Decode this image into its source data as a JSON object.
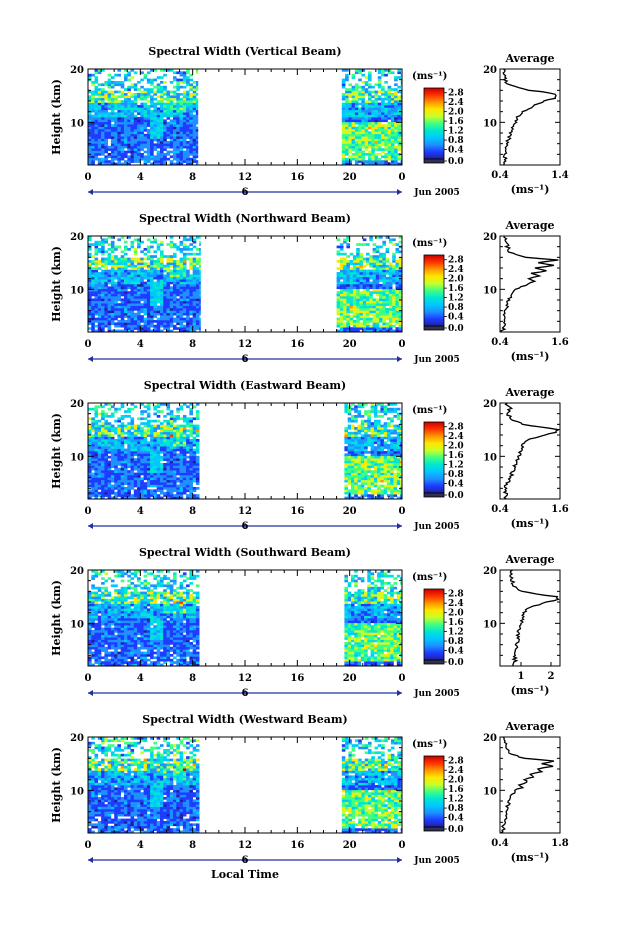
{
  "figure": {
    "month_label": "Jun 2005",
    "x_axis_title": "Local Time",
    "y_axis_title": "Height (km)",
    "colorbar_unit": "(ms⁻¹)",
    "colorbar_ticks": [
      "2.8",
      "2.4",
      "2.0",
      "1.6",
      "1.2",
      "0.8",
      "0.4",
      "0.0"
    ],
    "day_marker_label": "6",
    "avg_title": "Average",
    "avg_xlabel": "(ms⁻¹)",
    "colors": {
      "colorbar_gradient": [
        "#2020a0",
        "#1e3cff",
        "#1e90ff",
        "#00c8ff",
        "#00e6d2",
        "#40ff80",
        "#c8ff28",
        "#ffe600",
        "#ff9600",
        "#ff3200",
        "#c80000"
      ],
      "colorbar_bottom_band": "#303050",
      "day_marker": "#2030a0"
    }
  },
  "chart_data": [
    {
      "type": "heatmap",
      "title": "Spectral Width (Vertical Beam)",
      "xlabel": "Local Time",
      "ylabel": "Height (km)",
      "x_ticks": [
        "0",
        "4",
        "8",
        "12",
        "16",
        "20",
        "0"
      ],
      "y_ticks": [
        "20",
        "10"
      ],
      "xlim": [
        0,
        24
      ],
      "ylim": [
        2,
        20
      ],
      "data_coverage_hours": [
        [
          0,
          8.4
        ],
        [
          19.4,
          24
        ]
      ],
      "colorbar": {
        "label": "(ms⁻¹)",
        "range": [
          0.0,
          3.0
        ]
      },
      "average_profile": {
        "title": "Average",
        "xlabel": "(ms⁻¹)",
        "x_ticks": [
          "0.4",
          "1.4"
        ],
        "xlim": [
          0.4,
          1.4
        ],
        "y_ticks": [
          "20",
          "10"
        ],
        "ylim": [
          2,
          20
        ],
        "height_km": [
          2,
          3,
          4,
          5,
          6,
          7,
          8,
          9,
          10,
          11,
          12,
          13,
          13.5,
          14,
          14.5,
          15,
          15.5,
          16,
          17,
          18,
          19,
          20
        ],
        "width": [
          0.46,
          0.5,
          0.47,
          0.52,
          0.5,
          0.55,
          0.58,
          0.6,
          0.66,
          0.7,
          0.78,
          0.95,
          1.05,
          1.15,
          1.3,
          1.36,
          1.25,
          0.9,
          0.55,
          0.48,
          0.47,
          0.46
        ]
      }
    },
    {
      "type": "heatmap",
      "title": "Spectral Width (Northward Beam)",
      "xlabel": "Local Time",
      "ylabel": "Height (km)",
      "x_ticks": [
        "0",
        "4",
        "8",
        "12",
        "16",
        "20",
        "0"
      ],
      "y_ticks": [
        "20",
        "10"
      ],
      "xlim": [
        0,
        24
      ],
      "ylim": [
        2,
        20
      ],
      "data_coverage_hours": [
        [
          0,
          8.6
        ],
        [
          19.0,
          24
        ]
      ],
      "colorbar": {
        "label": "(ms⁻¹)",
        "range": [
          0.0,
          3.0
        ]
      },
      "average_profile": {
        "title": "Average",
        "xlabel": "(ms⁻¹)",
        "x_ticks": [
          "0.4",
          "1.6"
        ],
        "xlim": [
          0.4,
          1.6
        ],
        "y_ticks": [
          "20",
          "10"
        ],
        "ylim": [
          2,
          20
        ],
        "height_km": [
          2,
          3,
          4,
          5,
          6,
          7,
          8,
          9,
          10,
          10.5,
          11,
          11.5,
          12,
          12.5,
          13,
          13.5,
          14,
          14.5,
          15,
          15.5,
          16,
          17,
          18,
          19,
          20
        ],
        "width": [
          0.45,
          0.48,
          0.47,
          0.5,
          0.52,
          0.55,
          0.58,
          0.62,
          0.7,
          0.85,
          0.95,
          1.1,
          1.0,
          1.2,
          1.05,
          1.3,
          1.1,
          1.45,
          1.2,
          1.55,
          0.9,
          0.6,
          0.55,
          0.52,
          0.5
        ]
      }
    },
    {
      "type": "heatmap",
      "title": "Spectral Width (Eastward Beam)",
      "xlabel": "Local Time",
      "ylabel": "Height (km)",
      "x_ticks": [
        "0",
        "4",
        "8",
        "12",
        "16",
        "20",
        "0"
      ],
      "y_ticks": [
        "20",
        "10"
      ],
      "xlim": [
        0,
        24
      ],
      "ylim": [
        2,
        20
      ],
      "data_coverage_hours": [
        [
          0,
          8.5
        ],
        [
          19.6,
          24
        ]
      ],
      "colorbar": {
        "label": "(ms⁻¹)",
        "range": [
          0.0,
          3.0
        ]
      },
      "average_profile": {
        "title": "Average",
        "xlabel": "(ms⁻¹)",
        "x_ticks": [
          "0.4",
          "1.6"
        ],
        "xlim": [
          0.4,
          1.6
        ],
        "y_ticks": [
          "20",
          "10"
        ],
        "ylim": [
          2,
          20
        ],
        "height_km": [
          2,
          3,
          4,
          5,
          6,
          7,
          8,
          9,
          10,
          11,
          12,
          13,
          13.5,
          14,
          14.5,
          15,
          15.5,
          16,
          17,
          18,
          19,
          20
        ],
        "width": [
          0.5,
          0.52,
          0.5,
          0.55,
          0.6,
          0.65,
          0.68,
          0.72,
          0.78,
          0.82,
          0.85,
          0.95,
          1.1,
          1.3,
          1.5,
          1.55,
          1.2,
          0.85,
          0.62,
          0.55,
          0.6,
          0.52
        ]
      }
    },
    {
      "type": "heatmap",
      "title": "Spectral Width (Southward Beam)",
      "xlabel": "Local Time",
      "ylabel": "Height (km)",
      "x_ticks": [
        "0",
        "4",
        "8",
        "12",
        "16",
        "20",
        "0"
      ],
      "y_ticks": [
        "20",
        "10"
      ],
      "xlim": [
        0,
        24
      ],
      "ylim": [
        2,
        20
      ],
      "data_coverage_hours": [
        [
          0,
          8.5
        ],
        [
          19.6,
          24
        ]
      ],
      "colorbar": {
        "label": "(ms⁻¹)",
        "range": [
          0.0,
          3.0
        ]
      },
      "average_profile": {
        "title": "Average",
        "xlabel": "(ms⁻¹)",
        "x_ticks": [
          "1",
          "2"
        ],
        "xlim": [
          0.3,
          2.3
        ],
        "y_ticks": [
          "20",
          "10"
        ],
        "ylim": [
          2,
          20
        ],
        "height_km": [
          2,
          3,
          4,
          5,
          6,
          7,
          8,
          9,
          10,
          11,
          12,
          13,
          13.5,
          14,
          14.5,
          15,
          15.5,
          16,
          17,
          18,
          19,
          20
        ],
        "width": [
          0.75,
          0.8,
          0.78,
          0.82,
          0.85,
          0.9,
          0.92,
          0.95,
          1.0,
          1.05,
          1.1,
          1.3,
          1.6,
          1.9,
          2.2,
          2.15,
          1.5,
          1.0,
          0.75,
          0.7,
          0.68,
          0.66
        ]
      }
    },
    {
      "type": "heatmap",
      "title": "Spectral Width (Westward Beam)",
      "xlabel": "Local Time",
      "ylabel": "Height (km)",
      "x_ticks": [
        "0",
        "4",
        "8",
        "12",
        "16",
        "20",
        "0"
      ],
      "y_ticks": [
        "20",
        "10"
      ],
      "xlim": [
        0,
        24
      ],
      "ylim": [
        2,
        20
      ],
      "data_coverage_hours": [
        [
          0,
          8.5
        ],
        [
          19.4,
          24
        ]
      ],
      "colorbar": {
        "label": "(ms⁻¹)",
        "range": [
          0.0,
          3.0
        ]
      },
      "average_profile": {
        "title": "Average",
        "xlabel": "(ms⁻¹)",
        "x_ticks": [
          "0.4",
          "1.8"
        ],
        "xlim": [
          0.4,
          1.8
        ],
        "y_ticks": [
          "20",
          "10"
        ],
        "ylim": [
          2,
          20
        ],
        "height_km": [
          2,
          3,
          4,
          5,
          6,
          7,
          8,
          9,
          10,
          10.5,
          11,
          11.5,
          12,
          12.5,
          13,
          13.5,
          14,
          14.5,
          15,
          15.5,
          16,
          17,
          18,
          19,
          20
        ],
        "width": [
          0.45,
          0.48,
          0.5,
          0.52,
          0.55,
          0.58,
          0.62,
          0.66,
          0.75,
          0.9,
          0.85,
          1.05,
          0.95,
          1.2,
          1.1,
          1.35,
          1.25,
          1.6,
          1.4,
          1.7,
          0.95,
          0.6,
          0.55,
          0.5,
          0.48
        ]
      }
    }
  ]
}
